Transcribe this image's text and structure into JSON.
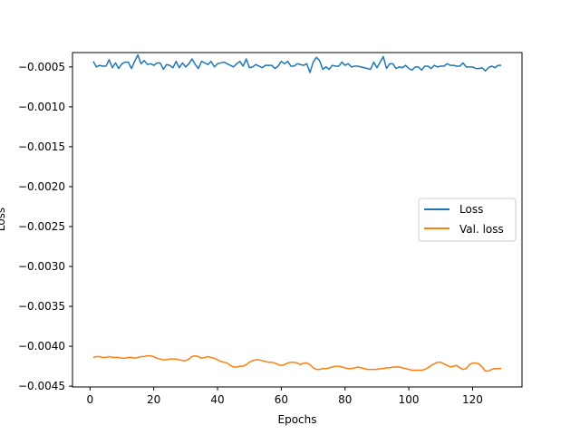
{
  "chart_data": {
    "type": "line",
    "title": "",
    "xlabel": "Epochs",
    "ylabel": "Loss",
    "xlim": [
      -5.5,
      135.5
    ],
    "ylim": [
      -0.00451,
      -0.00032
    ],
    "xticks": [
      0,
      20,
      40,
      60,
      80,
      100,
      120
    ],
    "xtick_labels": [
      "0",
      "20",
      "40",
      "60",
      "80",
      "100",
      "120"
    ],
    "yticks": [
      -0.0005,
      -0.001,
      -0.0015,
      -0.002,
      -0.0025,
      -0.003,
      -0.0035,
      -0.004,
      -0.0045
    ],
    "ytick_labels": [
      "−0.0005",
      "−0.0010",
      "−0.0015",
      "−0.0020",
      "−0.0025",
      "−0.0030",
      "−0.0035",
      "−0.0040",
      "−0.0045"
    ],
    "grid": false,
    "legend_position": "center-right",
    "x_start": 1,
    "series": [
      {
        "name": "Loss",
        "color": "#1f77b4",
        "values": [
          -0.00043,
          -0.0005,
          -0.00048,
          -0.00049,
          -0.00049,
          -0.00041,
          -0.00051,
          -0.00045,
          -0.00052,
          -0.00046,
          -0.00044,
          -0.00044,
          -0.00052,
          -0.00043,
          -0.00035,
          -0.00046,
          -0.00042,
          -0.00047,
          -0.00046,
          -0.00048,
          -0.00045,
          -0.00045,
          -0.00053,
          -0.00047,
          -0.00048,
          -0.00051,
          -0.00043,
          -0.00051,
          -0.00045,
          -0.0005,
          -0.00046,
          -0.0004,
          -0.00047,
          -0.00052,
          -0.00043,
          -0.00045,
          -0.00047,
          -0.00043,
          -0.0005,
          -0.00046,
          -0.00045,
          -0.00044,
          -0.00046,
          -0.00048,
          -0.0005,
          -0.00046,
          -0.00043,
          -0.00049,
          -0.0004,
          -0.00051,
          -0.0005,
          -0.00047,
          -0.00049,
          -0.00051,
          -0.00048,
          -0.00048,
          -0.00048,
          -0.00052,
          -0.00049,
          -0.00043,
          -0.00046,
          -0.00043,
          -0.00049,
          -0.00049,
          -0.00046,
          -0.00047,
          -0.00048,
          -0.00046,
          -0.00057,
          -0.00044,
          -0.00038,
          -0.00042,
          -0.00053,
          -0.0005,
          -0.00053,
          -0.00048,
          -0.00049,
          -0.00049,
          -0.00044,
          -0.00048,
          -0.00046,
          -0.0005,
          -0.00049,
          -0.00049,
          -0.0005,
          -0.00051,
          -0.00052,
          -0.00053,
          -0.00044,
          -0.00051,
          -0.00044,
          -0.00037,
          -0.00052,
          -0.00046,
          -0.00046,
          -0.00052,
          -0.0005,
          -0.00051,
          -0.00048,
          -0.00052,
          -0.00054,
          -0.0005,
          -0.0005,
          -0.00054,
          -0.00049,
          -0.00049,
          -0.00052,
          -0.00048,
          -0.0005,
          -0.00049,
          -0.00049,
          -0.00046,
          -0.00048,
          -0.00048,
          -0.00049,
          -0.00049,
          -0.00045,
          -0.0005,
          -0.0005,
          -0.0005,
          -0.00052,
          -0.00052,
          -0.00051,
          -0.00055,
          -0.00051,
          -0.00049,
          -0.00051,
          -0.00048,
          -0.00048
        ]
      },
      {
        "name": "Val. loss",
        "color": "#ff7f0e",
        "values": [
          -0.00414,
          -0.00413,
          -0.00413,
          -0.00414,
          -0.00414,
          -0.00413,
          -0.00414,
          -0.00414,
          -0.00414,
          -0.00415,
          -0.00415,
          -0.00414,
          -0.00414,
          -0.00415,
          -0.00414,
          -0.00413,
          -0.00413,
          -0.00412,
          -0.00412,
          -0.00413,
          -0.00415,
          -0.00416,
          -0.00417,
          -0.00417,
          -0.00416,
          -0.00416,
          -0.00416,
          -0.00417,
          -0.00418,
          -0.00418,
          -0.00416,
          -0.00413,
          -0.00412,
          -0.00413,
          -0.00415,
          -0.00414,
          -0.00413,
          -0.00414,
          -0.00415,
          -0.00417,
          -0.00419,
          -0.0042,
          -0.00421,
          -0.00424,
          -0.00426,
          -0.00426,
          -0.00425,
          -0.00425,
          -0.00423,
          -0.0042,
          -0.00418,
          -0.00417,
          -0.00417,
          -0.00418,
          -0.00419,
          -0.0042,
          -0.0042,
          -0.00421,
          -0.00423,
          -0.00424,
          -0.00423,
          -0.00421,
          -0.0042,
          -0.0042,
          -0.00421,
          -0.00423,
          -0.00421,
          -0.00421,
          -0.00423,
          -0.00427,
          -0.00429,
          -0.00429,
          -0.00428,
          -0.00428,
          -0.00427,
          -0.00426,
          -0.00425,
          -0.00425,
          -0.00426,
          -0.00427,
          -0.00428,
          -0.00428,
          -0.00427,
          -0.00426,
          -0.00427,
          -0.00428,
          -0.00429,
          -0.00429,
          -0.00429,
          -0.00429,
          -0.00428,
          -0.00428,
          -0.00427,
          -0.00427,
          -0.00426,
          -0.00426,
          -0.00426,
          -0.00427,
          -0.00428,
          -0.00429,
          -0.0043,
          -0.0043,
          -0.0043,
          -0.0043,
          -0.00429,
          -0.00427,
          -0.00424,
          -0.00422,
          -0.0042,
          -0.0042,
          -0.00422,
          -0.00424,
          -0.00426,
          -0.00425,
          -0.00424,
          -0.00427,
          -0.00429,
          -0.00428,
          -0.00423,
          -0.00421,
          -0.00421,
          -0.00422,
          -0.00426,
          -0.00431,
          -0.00431,
          -0.00429,
          -0.00428,
          -0.00428,
          -0.00428
        ]
      }
    ]
  }
}
